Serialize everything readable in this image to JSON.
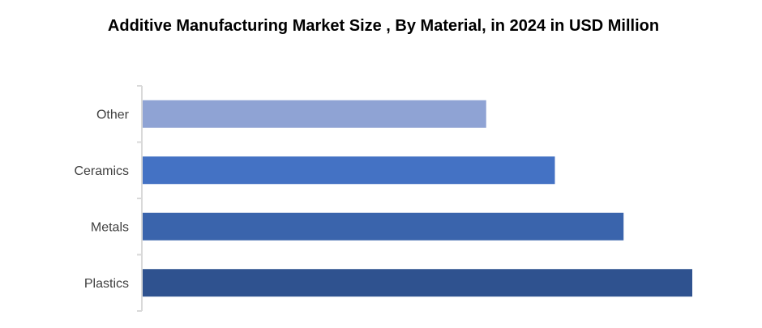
{
  "chart_data": {
    "type": "bar",
    "orientation": "horizontal",
    "title": "Additive Manufacturing  Market Size , By  Material, in 2024 in USD Million",
    "categories": [
      "Plastics",
      "Metals",
      "Ceramics",
      "Other"
    ],
    "values": [
      1.0,
      0.875,
      0.75,
      0.625
    ],
    "value_note_visible": false,
    "colors": [
      "#2F528F",
      "#3A64AC",
      "#4472C4",
      "#8FA3D4"
    ],
    "xlabel": "",
    "ylabel": "",
    "grid": false,
    "legend": "none"
  }
}
